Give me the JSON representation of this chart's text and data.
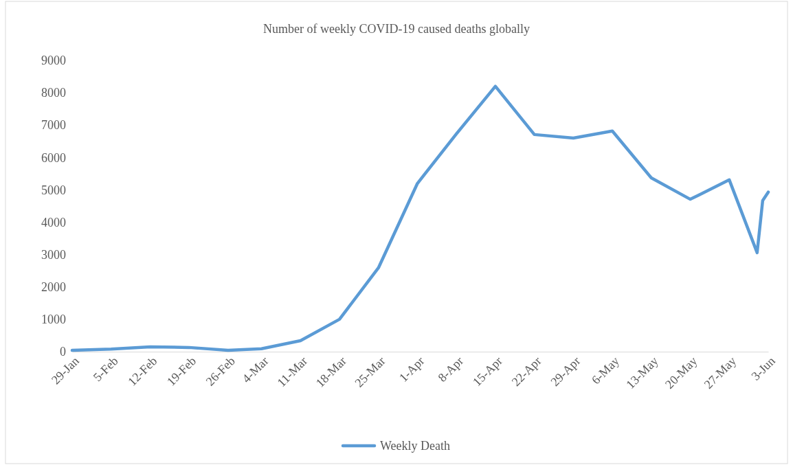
{
  "chart_data": {
    "type": "line",
    "title": "Number of  weekly COVID-19 caused deaths globally",
    "x": [
      "--01-29",
      "--02-05",
      "--02-12",
      "--02-19",
      "--02-26",
      "--03-04",
      "--03-11",
      "--03-18",
      "--03-25",
      "--04-01",
      "--04-08",
      "--04-15",
      "--04-22",
      "--04-29",
      "--05-06",
      "--05-13",
      "--05-20",
      "--05-27",
      "--06-01",
      "--06-02",
      "--06-03"
    ],
    "series": [
      {
        "name": "Weekly Death",
        "color": "#5b9bd5",
        "values": [
          40,
          80,
          150,
          130,
          40,
          90,
          340,
          1000,
          2590,
          5200,
          6730,
          8200,
          6710,
          6600,
          6820,
          5370,
          4710,
          5310,
          3060,
          4670,
          4930
        ]
      }
    ],
    "xlim": [
      "--01-29",
      "--06-03"
    ],
    "xticks": [
      {
        "value": "--01-29",
        "label": "29-Jan"
      },
      {
        "value": "--02-05",
        "label": "5-Feb"
      },
      {
        "value": "--02-12",
        "label": "12-Feb"
      },
      {
        "value": "--02-19",
        "label": "19-Feb"
      },
      {
        "value": "--02-26",
        "label": "26-Feb"
      },
      {
        "value": "--03-04",
        "label": "4-Mar"
      },
      {
        "value": "--03-11",
        "label": "11-Mar"
      },
      {
        "value": "--03-18",
        "label": "18-Mar"
      },
      {
        "value": "--03-25",
        "label": "25-Mar"
      },
      {
        "value": "--04-01",
        "label": "1-Apr"
      },
      {
        "value": "--04-08",
        "label": "8-Apr"
      },
      {
        "value": "--04-15",
        "label": "15-Apr"
      },
      {
        "value": "--04-22",
        "label": "22-Apr"
      },
      {
        "value": "--04-29",
        "label": "29-Apr"
      },
      {
        "value": "--05-06",
        "label": "6-May"
      },
      {
        "value": "--05-13",
        "label": "13-May"
      },
      {
        "value": "--05-20",
        "label": "20-May"
      },
      {
        "value": "--05-27",
        "label": "27-May"
      },
      {
        "value": "--06-03",
        "label": "3-Jun"
      }
    ],
    "ylim": [
      0,
      9000
    ],
    "yticks": [
      0,
      1000,
      2000,
      3000,
      4000,
      5000,
      6000,
      7000,
      8000,
      9000
    ],
    "grid": false,
    "legend": "bottom",
    "marker": "none",
    "line_style": "solid"
  }
}
